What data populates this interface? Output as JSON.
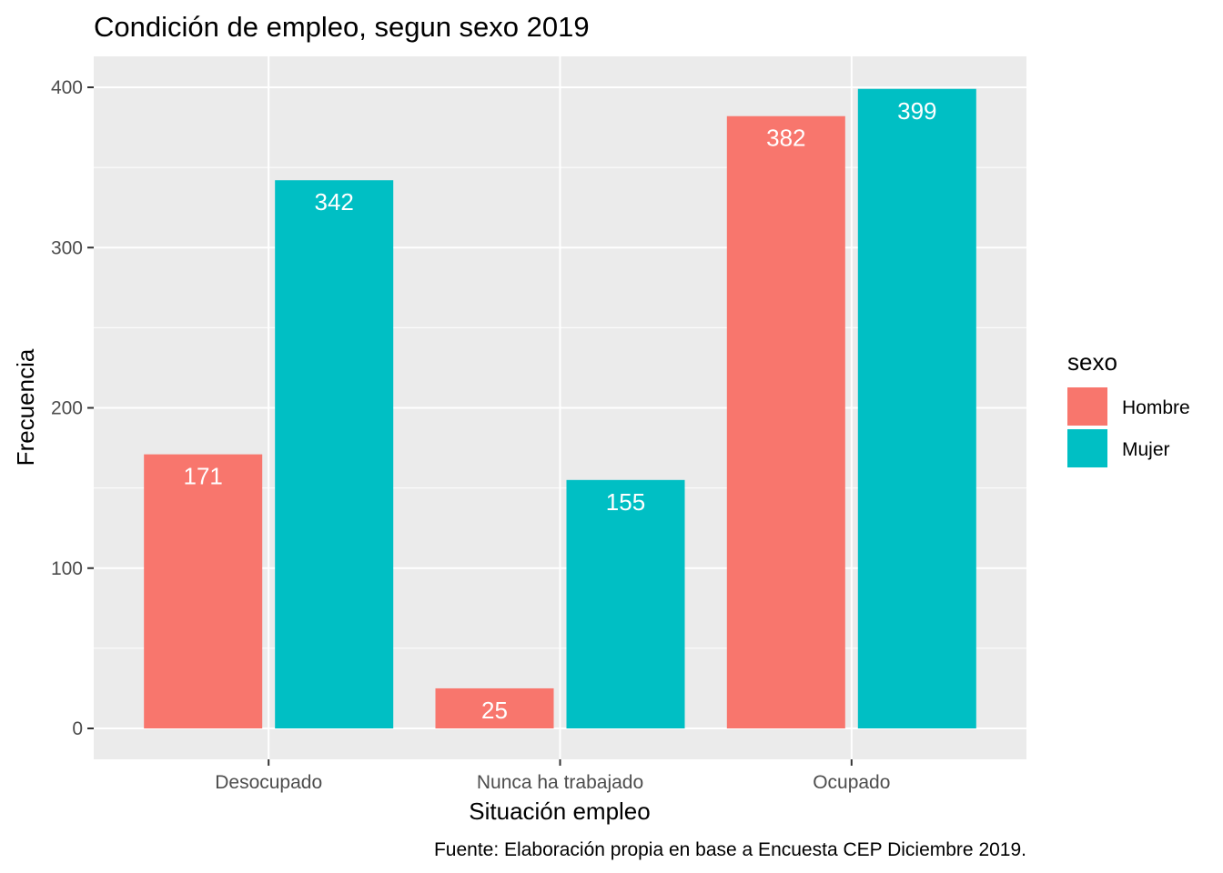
{
  "chart_data": {
    "type": "bar",
    "title": "Condición de empleo, segun sexo 2019",
    "xlabel": "Situación empleo",
    "ylabel": "Frecuencia",
    "caption": "Fuente: Elaboración propia en base a Encuesta CEP Diciembre 2019.",
    "categories": [
      "Desocupado",
      "Nunca ha trabajado",
      "Ocupado"
    ],
    "series": [
      {
        "name": "Hombre",
        "color": "#F8766D",
        "values": [
          171,
          25,
          382
        ]
      },
      {
        "name": "Mujer",
        "color": "#00BFC4",
        "values": [
          342,
          155,
          399
        ]
      }
    ],
    "ylim": [
      0,
      420
    ],
    "yticks": [
      0,
      100,
      200,
      300,
      400
    ],
    "ytick_labels": [
      "0",
      "100",
      "200",
      "300",
      "400"
    ],
    "legend": {
      "title": "sexo",
      "position": "right"
    },
    "grid": true,
    "panel_background": "#EBEBEB",
    "gridline_color": "#FFFFFF"
  }
}
